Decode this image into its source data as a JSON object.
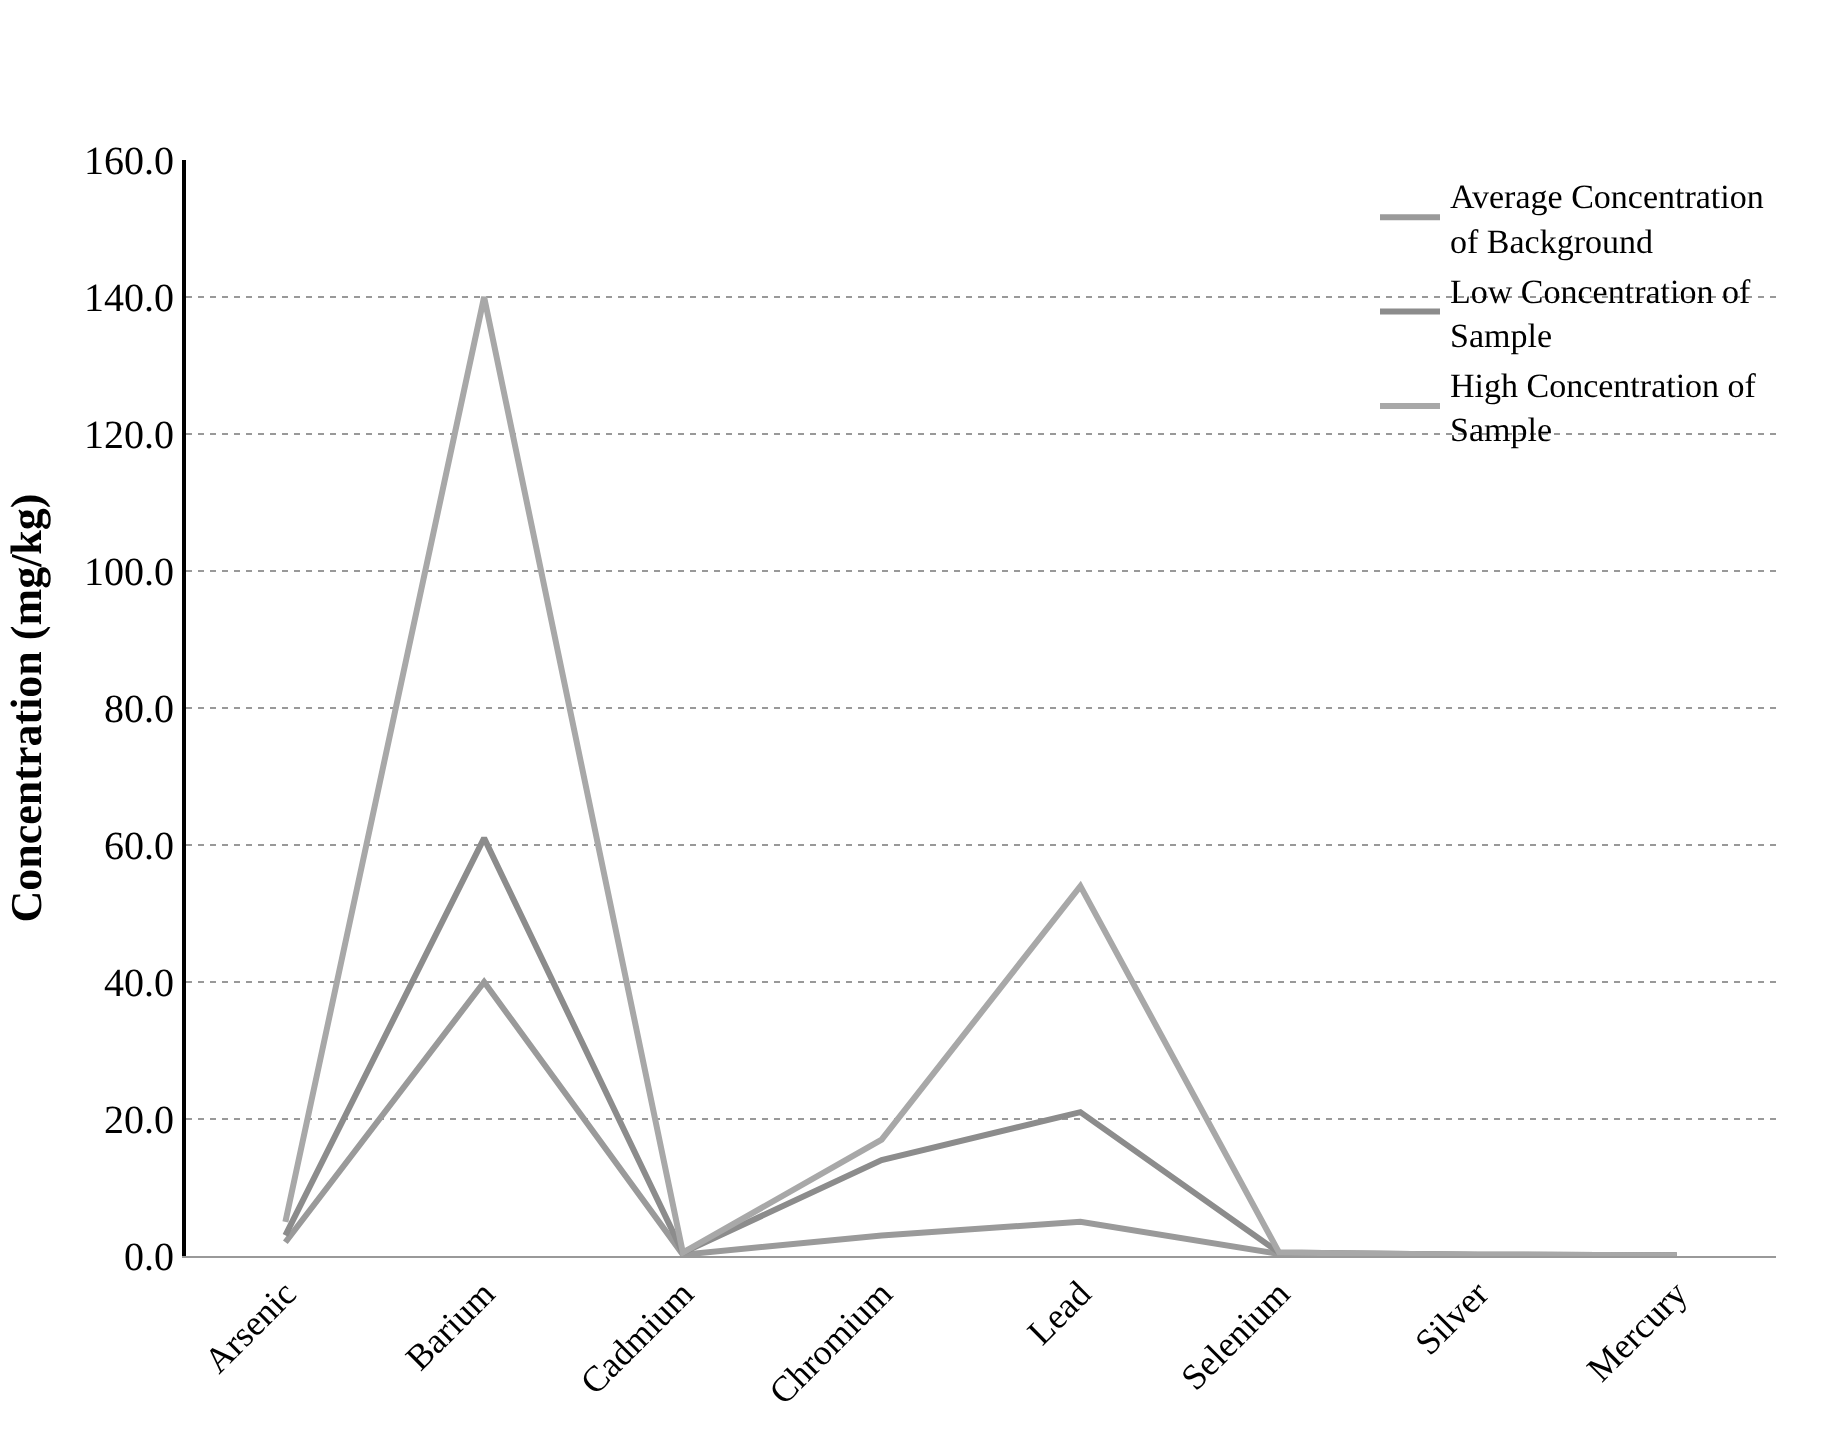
{
  "chart_data": {
    "type": "line",
    "ylabel": "Concentration (mg/kg)",
    "categories": [
      "Arsenic",
      "Barium",
      "Cadmium",
      "Chromium",
      "Lead",
      "Selenium",
      "Silver",
      "Mercury"
    ],
    "series": [
      {
        "name": "Average Concentration of Background",
        "color": "#9a9a9a",
        "values": [
          2,
          40,
          0.2,
          3,
          5,
          0.3,
          0.2,
          0.1
        ]
      },
      {
        "name": "Low Concentration of Sample",
        "color": "#8c8c8c",
        "values": [
          3,
          61,
          0.5,
          14,
          21,
          0.5,
          0.2,
          0.1
        ]
      },
      {
        "name": "High Concentration of Sample",
        "color": "#a8a8a8",
        "values": [
          5,
          140,
          0.5,
          17,
          54,
          0.5,
          0.2,
          0.1
        ]
      }
    ],
    "ylim": [
      0,
      160
    ],
    "yticks": [
      {
        "value": 0,
        "label": "0.0"
      },
      {
        "value": 20,
        "label": "20.0"
      },
      {
        "value": 40,
        "label": "40.0"
      },
      {
        "value": 60,
        "label": "60.0"
      },
      {
        "value": 80,
        "label": "80.0"
      },
      {
        "value": 100,
        "label": "100.0"
      },
      {
        "value": 120,
        "label": "120.0"
      },
      {
        "value": 140,
        "label": "140.0"
      },
      {
        "value": 160,
        "label": "160.0"
      }
    ],
    "grid": "y",
    "legend": "top right",
    "marker": "none",
    "line_style": "solid"
  }
}
